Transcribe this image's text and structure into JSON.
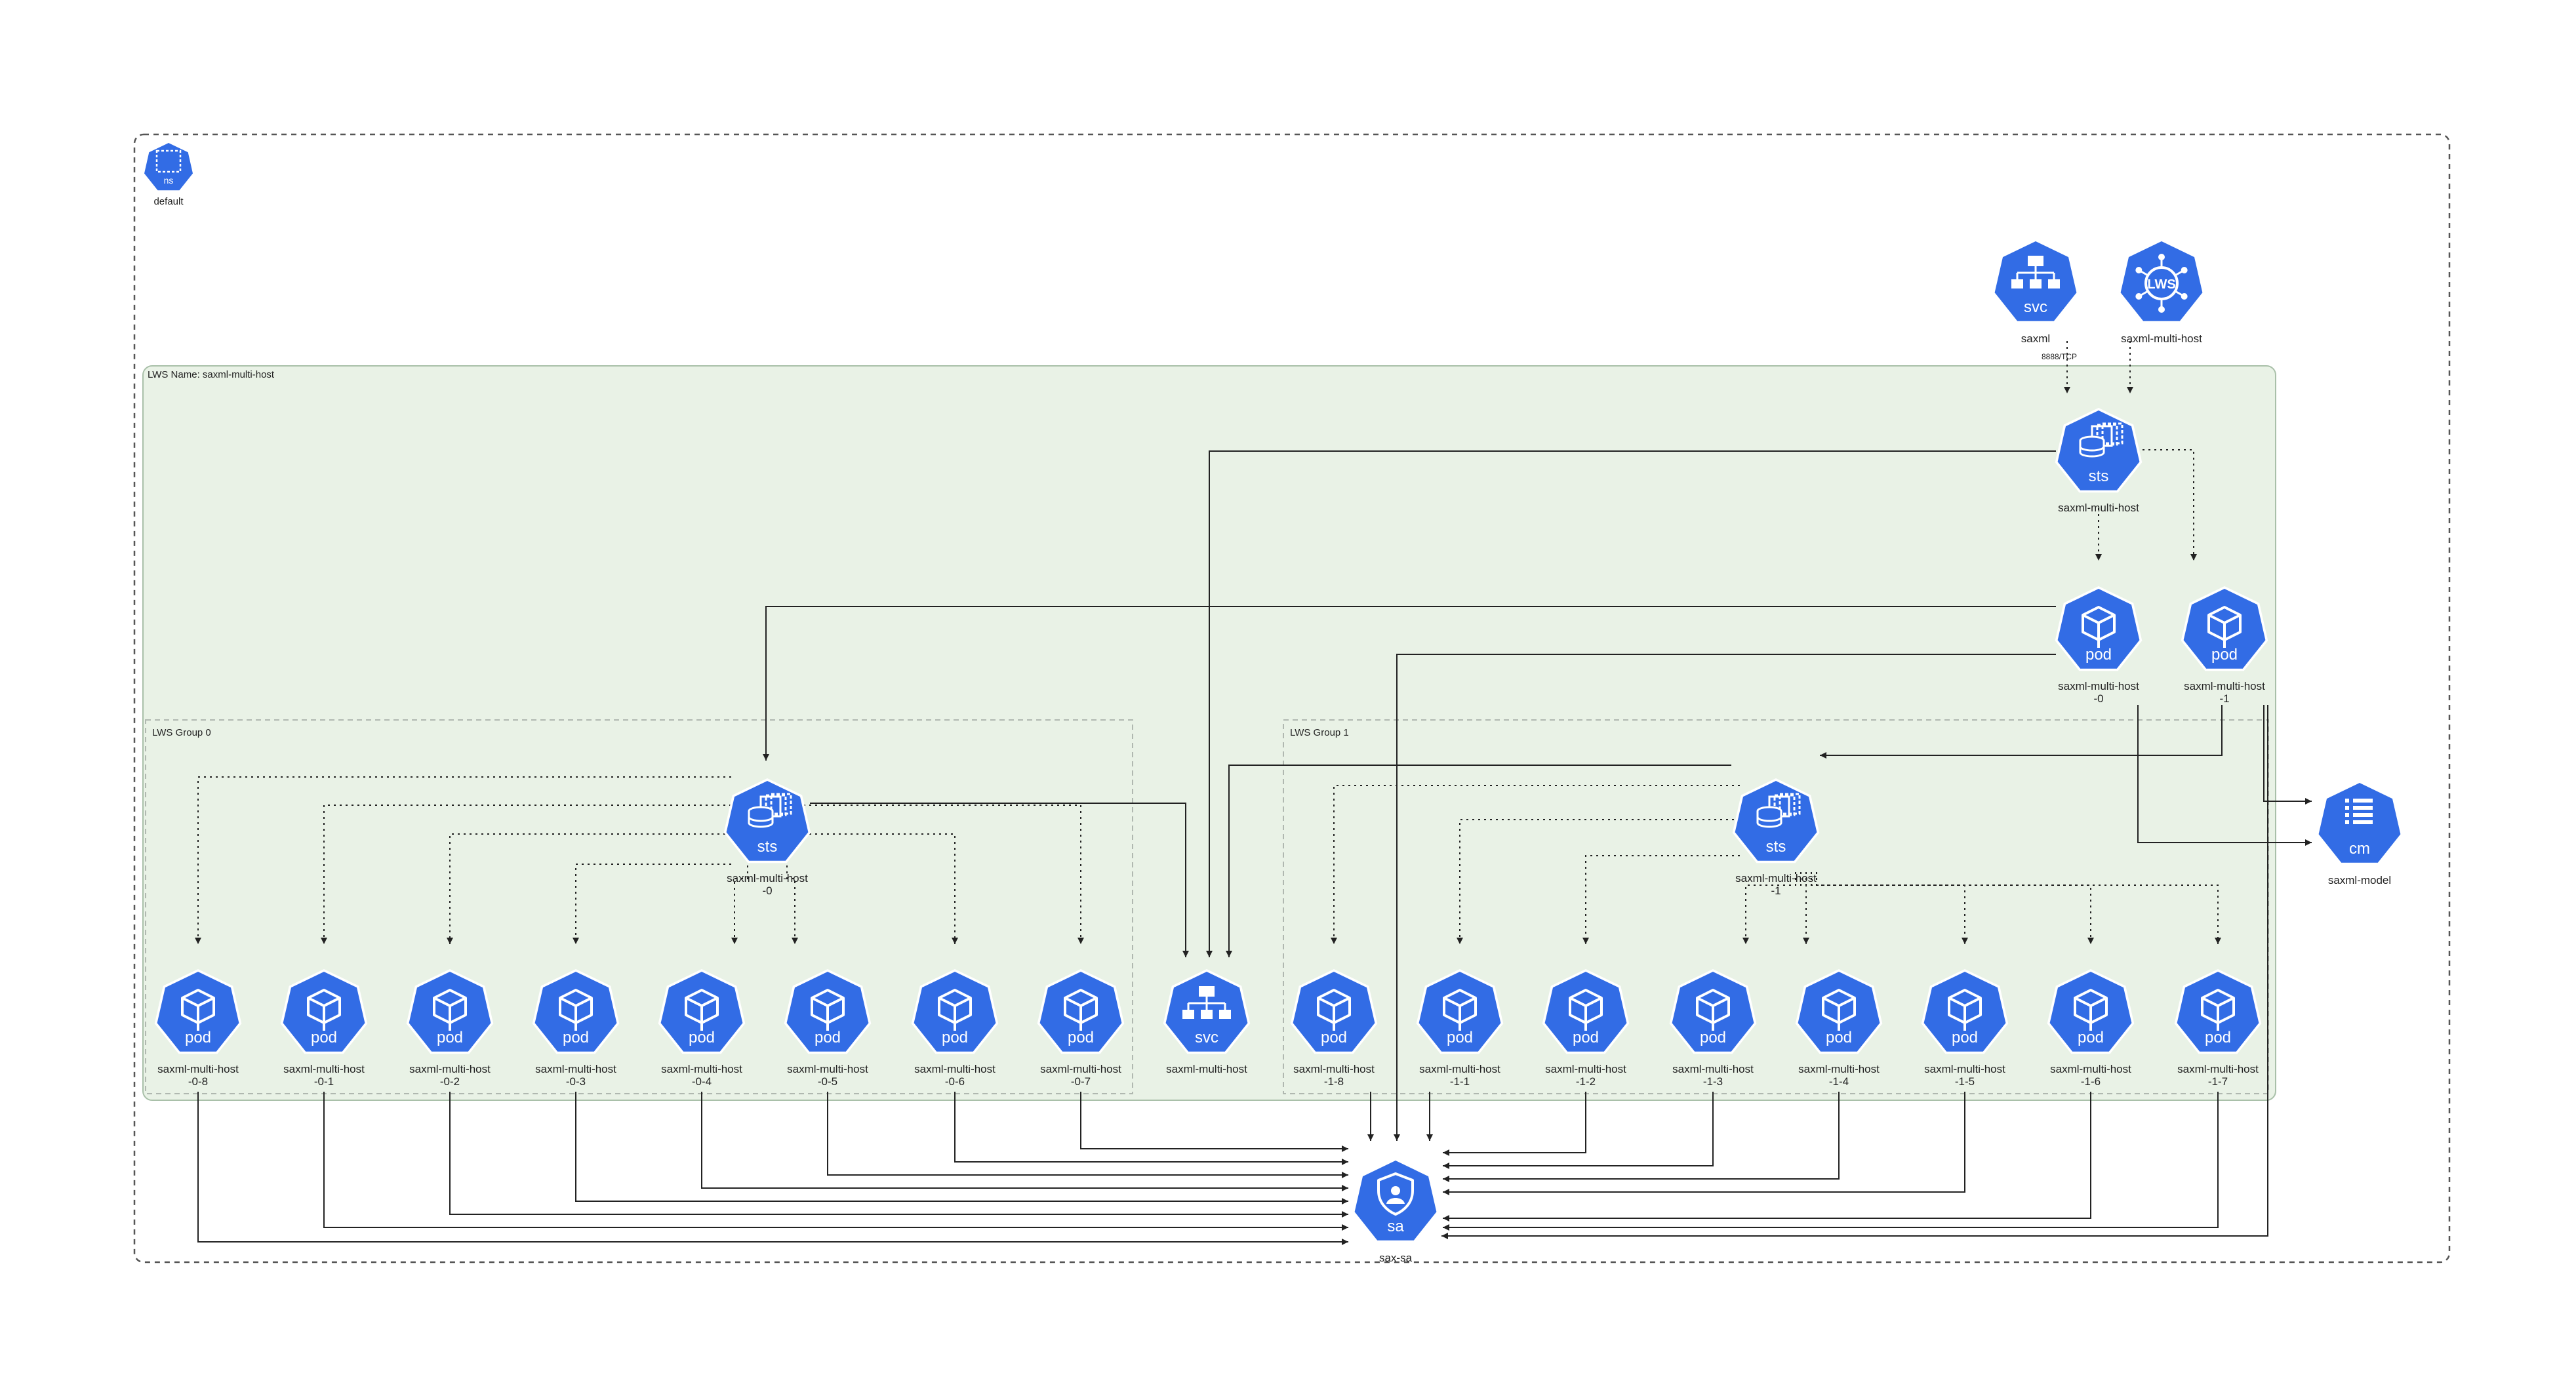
{
  "diagram": {
    "namespace": {
      "label": "default",
      "icon_text": "ns",
      "icon": "namespace-icon"
    },
    "lws_region": {
      "label": "LWS Name: saxml-multi-host"
    },
    "groups": [
      {
        "label": "LWS Group 0"
      },
      {
        "label": "LWS Group 1"
      }
    ],
    "top_svc": {
      "icon_text": "svc",
      "label": "saxml",
      "port_label": "8888/TCP",
      "icon": "service-icon"
    },
    "top_lws": {
      "icon_text": "LWS",
      "label": "saxml-multi-host",
      "icon": "leaderworkerset-icon"
    },
    "main_sts": {
      "icon_text": "sts",
      "label": "saxml-multi-host",
      "icon": "statefulset-icon"
    },
    "leader_pods": [
      {
        "icon_text": "pod",
        "label1": "saxml-multi-host",
        "label2": "-0"
      },
      {
        "icon_text": "pod",
        "label1": "saxml-multi-host",
        "label2": "-1"
      }
    ],
    "group_sts": [
      {
        "icon_text": "sts",
        "label1": "saxml-multi-host",
        "label2": "-0"
      },
      {
        "icon_text": "sts",
        "label1": "saxml-multi-host",
        "label2": "-1"
      }
    ],
    "configmap": {
      "icon_text": "cm",
      "label": "saxml-model",
      "icon": "configmap-icon"
    },
    "group_svc": {
      "icon_text": "svc",
      "label": "saxml-multi-host"
    },
    "service_account": {
      "icon_text": "sa",
      "label": "sax-sa",
      "icon": "service-account-icon"
    },
    "group0_pods": [
      {
        "icon_text": "pod",
        "label1": "saxml-multi-host",
        "label2": "-0-8"
      },
      {
        "icon_text": "pod",
        "label1": "saxml-multi-host",
        "label2": "-0-1"
      },
      {
        "icon_text": "pod",
        "label1": "saxml-multi-host",
        "label2": "-0-2"
      },
      {
        "icon_text": "pod",
        "label1": "saxml-multi-host",
        "label2": "-0-3"
      },
      {
        "icon_text": "pod",
        "label1": "saxml-multi-host",
        "label2": "-0-4"
      },
      {
        "icon_text": "pod",
        "label1": "saxml-multi-host",
        "label2": "-0-5"
      },
      {
        "icon_text": "pod",
        "label1": "saxml-multi-host",
        "label2": "-0-6"
      },
      {
        "icon_text": "pod",
        "label1": "saxml-multi-host",
        "label2": "-0-7"
      }
    ],
    "group1_pods": [
      {
        "icon_text": "pod",
        "label1": "saxml-multi-host",
        "label2": "-1-8"
      },
      {
        "icon_text": "pod",
        "label1": "saxml-multi-host",
        "label2": "-1-1"
      },
      {
        "icon_text": "pod",
        "label1": "saxml-multi-host",
        "label2": "-1-2"
      },
      {
        "icon_text": "pod",
        "label1": "saxml-multi-host",
        "label2": "-1-3"
      },
      {
        "icon_text": "pod",
        "label1": "saxml-multi-host",
        "label2": "-1-4"
      },
      {
        "icon_text": "pod",
        "label1": "saxml-multi-host",
        "label2": "-1-5"
      },
      {
        "icon_text": "pod",
        "label1": "saxml-multi-host",
        "label2": "-1-6"
      },
      {
        "icon_text": "pod",
        "label1": "saxml-multi-host",
        "label2": "-1-7"
      }
    ],
    "colors": {
      "icon_blue": "#326ce5",
      "region_fill": "#e9f2e6",
      "region_stroke": "#a9c0a9",
      "edge": "#222222"
    }
  }
}
